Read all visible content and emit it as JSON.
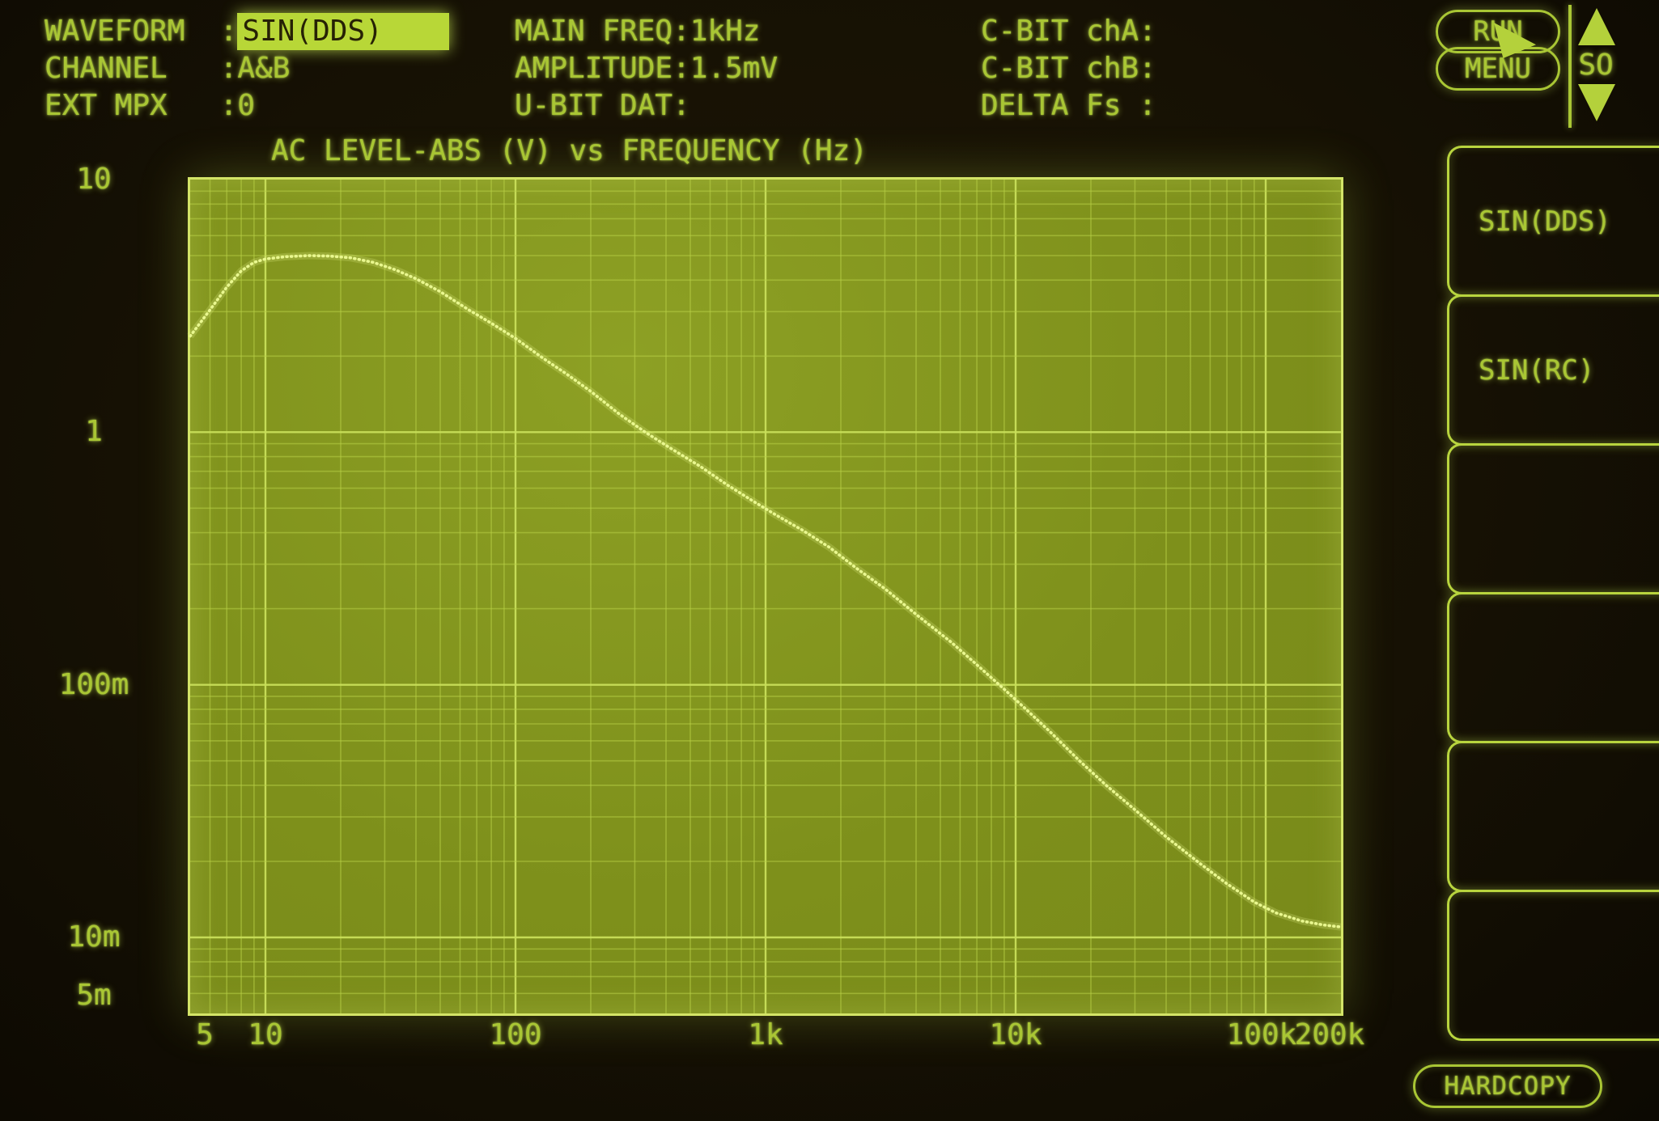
{
  "status_panel": {
    "left": [
      {
        "label": "WAVEFORM  :",
        "value": "SIN(DDS)",
        "highlight": true
      },
      {
        "label": "CHANNEL   :",
        "value": "A&B",
        "highlight": false
      },
      {
        "label": "EXT MPX   :",
        "value": "0",
        "highlight": false
      }
    ],
    "center": [
      {
        "label": "MAIN FREQ:",
        "value": "1kHz"
      },
      {
        "label": "AMPLITUDE:",
        "value": "1.5mV"
      },
      {
        "label": "U-BIT DAT:",
        "value": ""
      }
    ],
    "right": [
      {
        "label": "C-BIT chA:",
        "value": ""
      },
      {
        "label": "C-BIT chB:",
        "value": ""
      },
      {
        "label": "DELTA Fs :",
        "value": ""
      }
    ]
  },
  "controls": {
    "run_label": "RUN",
    "menu_label": "MENU",
    "scroll_label": "SO",
    "hardcopy_label": "HARDCOPY"
  },
  "side_menu": {
    "items": [
      {
        "label": "SIN(DDS)"
      },
      {
        "label": "SIN(RC)"
      },
      {
        "label": ""
      },
      {
        "label": ""
      },
      {
        "label": ""
      },
      {
        "label": ""
      }
    ]
  },
  "chart_data": {
    "type": "line",
    "title": "AC LEVEL-ABS (V) vs FREQUENCY (Hz)",
    "xlabel": "FREQUENCY (Hz)",
    "ylabel": "AC LEVEL-ABS (V)",
    "x_axis": {
      "scale": "log",
      "min": 5,
      "max": 200000,
      "ticks": [
        {
          "v": 5,
          "label": "5",
          "dx": 18
        },
        {
          "v": 10,
          "label": "10"
        },
        {
          "v": 100,
          "label": "100"
        },
        {
          "v": 1000,
          "label": "1k"
        },
        {
          "v": 10000,
          "label": "10k"
        },
        {
          "v": 100000,
          "label": "100k",
          "dx": -5
        },
        {
          "v": 200000,
          "label": "200k",
          "dx": -14
        }
      ]
    },
    "y_axis": {
      "scale": "log",
      "min": 0.005,
      "max": 10,
      "ticks": [
        {
          "v": 10,
          "label": "10"
        },
        {
          "v": 1,
          "label": "1"
        },
        {
          "v": 0.1,
          "label": "100m"
        },
        {
          "v": 0.01,
          "label": "10m"
        },
        {
          "v": 0.005,
          "label": "5m",
          "dy": -22
        }
      ]
    },
    "grid": "log-minor-and-major",
    "legend": "none",
    "series": [
      {
        "name": "AC LEVEL-ABS",
        "points": [
          [
            5,
            2.4
          ],
          [
            6,
            3.05
          ],
          [
            7,
            3.75
          ],
          [
            8,
            4.35
          ],
          [
            9,
            4.7
          ],
          [
            10,
            4.85
          ],
          [
            12,
            4.95
          ],
          [
            15,
            5.0
          ],
          [
            18,
            4.98
          ],
          [
            22,
            4.9
          ],
          [
            27,
            4.7
          ],
          [
            33,
            4.4
          ],
          [
            40,
            4.05
          ],
          [
            50,
            3.6
          ],
          [
            65,
            3.05
          ],
          [
            80,
            2.7
          ],
          [
            100,
            2.35
          ],
          [
            130,
            1.95
          ],
          [
            160,
            1.7
          ],
          [
            200,
            1.45
          ],
          [
            260,
            1.18
          ],
          [
            330,
            1.0
          ],
          [
            420,
            0.86
          ],
          [
            550,
            0.73
          ],
          [
            700,
            0.62
          ],
          [
            900,
            0.53
          ],
          [
            1100,
            0.47
          ],
          [
            1400,
            0.41
          ],
          [
            1800,
            0.35
          ],
          [
            2300,
            0.29
          ],
          [
            3000,
            0.24
          ],
          [
            4000,
            0.19
          ],
          [
            5500,
            0.148
          ],
          [
            7000,
            0.12
          ],
          [
            9000,
            0.096
          ],
          [
            11000,
            0.08
          ],
          [
            14000,
            0.064
          ],
          [
            18000,
            0.05
          ],
          [
            23000,
            0.04
          ],
          [
            30000,
            0.032
          ],
          [
            40000,
            0.025
          ],
          [
            55000,
            0.0195
          ],
          [
            70000,
            0.0163
          ],
          [
            90000,
            0.0138
          ],
          [
            110000,
            0.0125
          ],
          [
            140000,
            0.0116
          ],
          [
            170000,
            0.0112
          ],
          [
            200000,
            0.011
          ]
        ]
      }
    ]
  },
  "colors": {
    "phosphor": "#a9c634",
    "highlight_bg": "#b8d737",
    "plot_bg": "#7e901b",
    "grid_minor": "#b7cf45",
    "grid_major": "#c9df5a",
    "trace": "#e9f78f"
  }
}
